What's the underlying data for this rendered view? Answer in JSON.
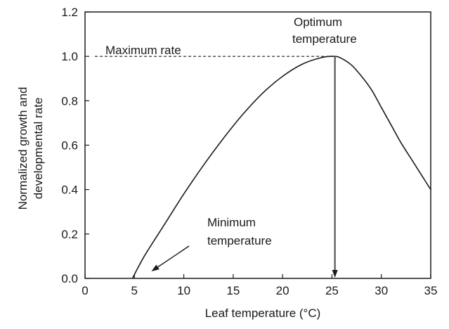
{
  "chart_data": {
    "type": "line",
    "xlabel": "Leaf temperature (°C)",
    "ylabel_line1": "Normalized growth and",
    "ylabel_line2": "developmental rate",
    "xlim": [
      0,
      35
    ],
    "ylim": [
      0,
      1.2
    ],
    "xticks": [
      0,
      5,
      10,
      15,
      20,
      25,
      30,
      35
    ],
    "yticks": [
      "0.0",
      "0.2",
      "0.4",
      "0.6",
      "0.8",
      "1.0",
      "1.2"
    ],
    "grid": false,
    "series": [
      {
        "x": [
          4.8,
          6,
          8,
          10,
          12,
          14,
          16,
          18,
          20,
          22,
          24,
          25.3,
          26,
          27,
          28,
          29,
          30,
          31,
          32,
          33,
          34,
          35
        ],
        "y": [
          0.0,
          0.1,
          0.24,
          0.38,
          0.51,
          0.63,
          0.74,
          0.835,
          0.91,
          0.965,
          0.995,
          1.0,
          0.99,
          0.96,
          0.91,
          0.85,
          0.77,
          0.69,
          0.61,
          0.54,
          0.47,
          0.4
        ]
      }
    ],
    "reference_line": {
      "y": 1.0,
      "x_range": [
        1,
        25.3
      ],
      "style": "dashed"
    },
    "annotations": {
      "maximum_rate": "Maximum rate",
      "optimum_line1": "Optimum",
      "optimum_line2": "temperature",
      "minimum_line1": "Minimum",
      "minimum_line2": "temperature"
    },
    "optimum_x": 25.3,
    "minimum_x": 4.8,
    "line_color": "#1a1a1a"
  }
}
